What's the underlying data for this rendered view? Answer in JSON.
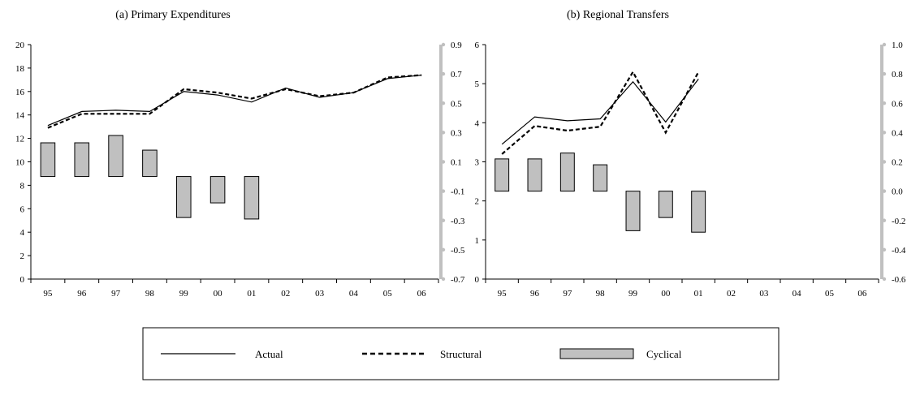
{
  "chart_data": [
    {
      "type": "line",
      "title": "(a) Primary Expenditures",
      "x": [
        "95",
        "96",
        "97",
        "98",
        "99",
        "00",
        "01",
        "02",
        "03",
        "04",
        "05",
        "06"
      ],
      "ylim": [
        0,
        20
      ],
      "yticks": [
        0,
        2,
        4,
        6,
        8,
        10,
        12,
        14,
        16,
        18,
        20
      ],
      "ylim_right": [
        -0.7,
        0.9
      ],
      "yticks_right": [
        "-0.7",
        "-0.5",
        "-0.3",
        "-0.1",
        "0.1",
        "0.3",
        "0.5",
        "0.7",
        "0.9"
      ],
      "series": [
        {
          "name": "Actual",
          "axis": "left",
          "style": "solid",
          "values": [
            13.1,
            14.3,
            14.4,
            14.3,
            16.0,
            15.7,
            15.1,
            16.3,
            15.5,
            15.9,
            17.1,
            17.4
          ]
        },
        {
          "name": "Structural",
          "axis": "left",
          "style": "dashed",
          "values": [
            12.9,
            14.1,
            14.1,
            14.1,
            16.2,
            15.9,
            15.4,
            16.2,
            15.6,
            15.9,
            17.2,
            17.4
          ]
        },
        {
          "name": "Cyclical",
          "axis": "right",
          "style": "bar",
          "values": [
            0.23,
            0.23,
            0.28,
            0.18,
            -0.28,
            -0.18,
            -0.29,
            null,
            null,
            null,
            null,
            null
          ]
        }
      ]
    },
    {
      "type": "line",
      "title": "(b) Regional Transfers",
      "x": [
        "95",
        "96",
        "97",
        "98",
        "99",
        "00",
        "01",
        "02",
        "03",
        "04",
        "05",
        "06"
      ],
      "ylim": [
        0,
        6
      ],
      "yticks": [
        0,
        1,
        2,
        3,
        4,
        5,
        6
      ],
      "ylim_right": [
        -0.6,
        1.0
      ],
      "yticks_right": [
        "-0.6",
        "-0.4",
        "-0.2",
        "0.0",
        "0.2",
        "0.4",
        "0.6",
        "0.8",
        "1.0"
      ],
      "series": [
        {
          "name": "Actual",
          "axis": "left",
          "style": "solid",
          "values": [
            3.45,
            4.15,
            4.05,
            4.1,
            5.05,
            4.02,
            5.12,
            null,
            null,
            null,
            null,
            null
          ]
        },
        {
          "name": "Structural",
          "axis": "left",
          "style": "dashed",
          "values": [
            3.2,
            3.92,
            3.8,
            3.9,
            5.3,
            3.75,
            5.3,
            null,
            null,
            null,
            null,
            null
          ]
        },
        {
          "name": "Cyclical",
          "axis": "right",
          "style": "bar",
          "values": [
            0.22,
            0.22,
            0.26,
            0.18,
            -0.27,
            -0.18,
            -0.28,
            null,
            null,
            null,
            null,
            null
          ]
        }
      ]
    }
  ],
  "legend": {
    "items": [
      {
        "label": "Actual",
        "style": "solid"
      },
      {
        "label": "Structural",
        "style": "dashed"
      },
      {
        "label": "Cyclical",
        "style": "bar"
      }
    ]
  },
  "colors": {
    "bar_fill": "#c0c0c0",
    "right_axis": "#c0c0c0",
    "line": "#000000"
  }
}
